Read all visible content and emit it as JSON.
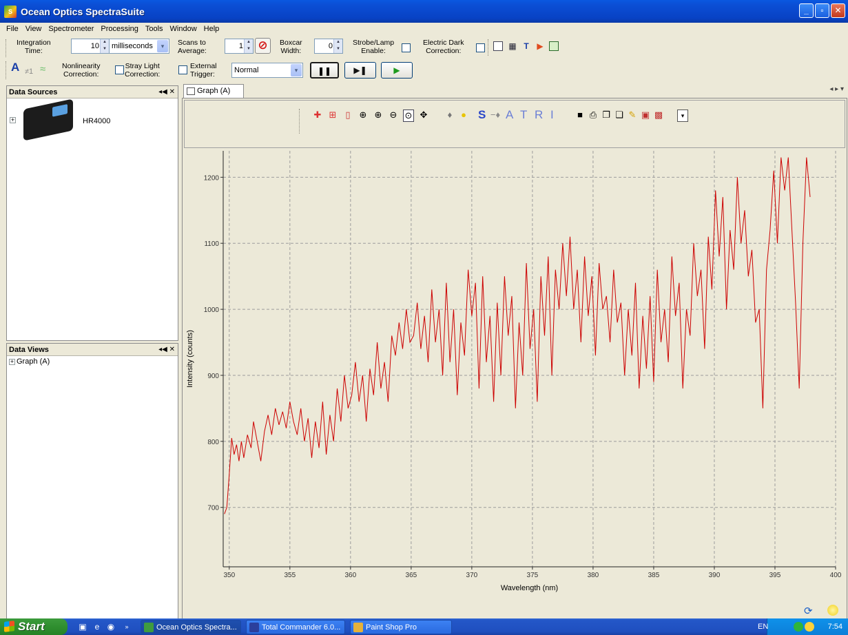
{
  "window": {
    "title": "Ocean Optics SpectraSuite",
    "app_icon_text": "S",
    "controls": [
      "_",
      "▫",
      "✕"
    ]
  },
  "menu": [
    "File",
    "View",
    "Spectrometer",
    "Processing",
    "Tools",
    "Window",
    "Help"
  ],
  "toolbar": {
    "integration_label_1": "Integration",
    "integration_label_2": "Time:",
    "integration_value": "10",
    "integration_unit": "milliseconds",
    "scans_label_1": "Scans to",
    "scans_label_2": "Average:",
    "scans_value": "1",
    "boxcar_label_1": "Boxcar",
    "boxcar_label_2": "Width:",
    "boxcar_value": "0",
    "strobe_label_1": "Strobe/Lamp",
    "strobe_label_2": "Enable:",
    "dark_label_1": "Electric Dark",
    "dark_label_2": "Correction:",
    "nonlinearity_label_1": "Nonlinearity",
    "nonlinearity_label_2": "Correction:",
    "stray_label_1": "Stray Light",
    "stray_label_2": "Correction:",
    "trigger_label_1": "External",
    "trigger_label_2": "Trigger:",
    "trigger_mode": "Normal",
    "letter_a": "A",
    "letter_neq": "≠1",
    "pause_symbol": "❚❚",
    "step_symbol": "▶❚",
    "play_symbol": "▶",
    "stop_symbol": "⊘",
    "spin_up": "▲",
    "spin_down": "▼",
    "drop_arrow": "▾"
  },
  "data_sources": {
    "title": "Data Sources",
    "controls": "◂◀ ✕",
    "toggle": "+",
    "device_name": "HR4000"
  },
  "data_views": {
    "title": "Data Views",
    "controls": "◂◀ ✕",
    "toggle": "+",
    "item": "Graph (A)"
  },
  "graph_tab": {
    "label": "Graph (A)",
    "close": "✕",
    "nav": "◂ ▸ ▾"
  },
  "graph_toolbar": {
    "letters": [
      "S",
      "A",
      "T",
      "R",
      "I"
    ]
  },
  "chart_data": {
    "type": "line",
    "xlabel": "Wavelength (nm)",
    "ylabel": "Intensity (counts)",
    "xlim": [
      349.5,
      400
    ],
    "ylim": [
      610,
      1240
    ],
    "xticks": [
      350,
      355,
      360,
      365,
      370,
      375,
      380,
      385,
      390,
      395,
      400
    ],
    "yticks": [
      700,
      800,
      900,
      1000,
      1100,
      1200
    ],
    "grid": true,
    "line_color": "#cc0000",
    "series": [
      {
        "x": [
          349.6,
          349.8,
          350.0,
          350.2,
          350.4,
          350.6,
          350.8,
          351.0,
          351.2,
          351.5,
          351.8,
          352.0,
          352.3,
          352.6,
          352.9,
          353.2,
          353.5,
          353.8,
          354.1,
          354.4,
          354.7,
          355.0,
          355.3,
          355.6,
          355.9,
          356.2,
          356.5,
          356.8,
          357.1,
          357.4,
          357.7,
          358.0,
          358.3,
          358.6,
          358.9,
          359.2,
          359.5,
          359.8,
          360.1,
          360.4,
          360.7,
          361.0,
          361.3,
          361.6,
          361.9,
          362.2,
          362.5,
          362.8,
          363.1,
          363.4,
          363.7,
          364.0,
          364.3,
          364.6,
          364.9,
          365.2,
          365.5,
          365.8,
          366.1,
          366.4,
          366.7,
          367.0,
          367.3,
          367.6,
          367.9,
          368.2,
          368.5,
          368.8,
          369.1,
          369.4,
          369.7,
          370.0,
          370.3,
          370.6,
          370.9,
          371.2,
          371.5,
          371.8,
          372.1,
          372.4,
          372.7,
          373.0,
          373.3,
          373.6,
          373.9,
          374.2,
          374.5,
          374.8,
          375.1,
          375.4,
          375.7,
          376.0,
          376.3,
          376.6,
          376.9,
          377.2,
          377.5,
          377.8,
          378.1,
          378.4,
          378.7,
          379.0,
          379.3,
          379.6,
          379.9,
          380.2,
          380.5,
          380.8,
          381.1,
          381.4,
          381.7,
          382.0,
          382.3,
          382.6,
          382.9,
          383.2,
          383.5,
          383.8,
          384.1,
          384.4,
          384.7,
          385.0,
          385.3,
          385.6,
          385.9,
          386.2,
          386.5,
          386.8,
          387.1,
          387.4,
          387.7,
          388.0,
          388.3,
          388.6,
          388.9,
          389.2,
          389.5,
          389.8,
          390.1,
          390.4,
          390.7,
          391.0,
          391.3,
          391.6,
          391.9,
          392.2,
          392.5,
          392.8,
          393.1,
          393.4,
          393.7,
          394.0,
          394.3,
          394.6,
          394.9,
          395.2,
          395.5,
          395.8,
          396.1,
          396.4,
          396.7,
          397.0,
          397.3,
          397.6,
          397.9
        ],
        "y": [
          690,
          700,
          750,
          805,
          780,
          795,
          770,
          800,
          775,
          810,
          790,
          830,
          800,
          770,
          815,
          840,
          810,
          850,
          825,
          845,
          820,
          860,
          830,
          810,
          850,
          800,
          835,
          775,
          830,
          790,
          860,
          780,
          840,
          800,
          880,
          830,
          900,
          850,
          870,
          920,
          860,
          900,
          830,
          910,
          870,
          950,
          880,
          920,
          860,
          960,
          930,
          980,
          940,
          1000,
          950,
          960,
          1010,
          940,
          990,
          920,
          1030,
          950,
          1000,
          900,
          1040,
          920,
          1000,
          870,
          980,
          930,
          1060,
          990,
          1040,
          880,
          1050,
          920,
          990,
          860,
          1010,
          900,
          1050,
          960,
          1020,
          850,
          980,
          900,
          1070,
          940,
          1000,
          860,
          1050,
          960,
          1080,
          900,
          1060,
          1000,
          1100,
          1020,
          1110,
          1000,
          1060,
          950,
          1080,
          990,
          1050,
          930,
          1070,
          1000,
          1020,
          950,
          1060,
          980,
          1010,
          900,
          1000,
          930,
          1040,
          880,
          990,
          910,
          1020,
          890,
          1060,
          950,
          1000,
          920,
          1080,
          990,
          1040,
          880,
          1000,
          960,
          1100,
          1020,
          1060,
          940,
          1110,
          1030,
          1180,
          1080,
          1170,
          1000,
          1120,
          1060,
          1200,
          1100,
          1150,
          1050,
          1090,
          980,
          1000,
          850,
          1060,
          1120,
          1210,
          1100,
          1230,
          1180,
          1230,
          1120,
          1010,
          880,
          1100,
          1230,
          1170
        ]
      }
    ]
  },
  "taskbar": {
    "start": "Start",
    "quick_more": "»",
    "tasks": [
      {
        "label": "Ocean Optics Spectra...",
        "color": "#3f9c3f"
      },
      {
        "label": "Total Commander 6.0...",
        "color": "#2b3f9c"
      },
      {
        "label": "Paint Shop Pro",
        "color": "#e6b23a"
      }
    ],
    "lang": "EN",
    "clock": "7:54"
  }
}
